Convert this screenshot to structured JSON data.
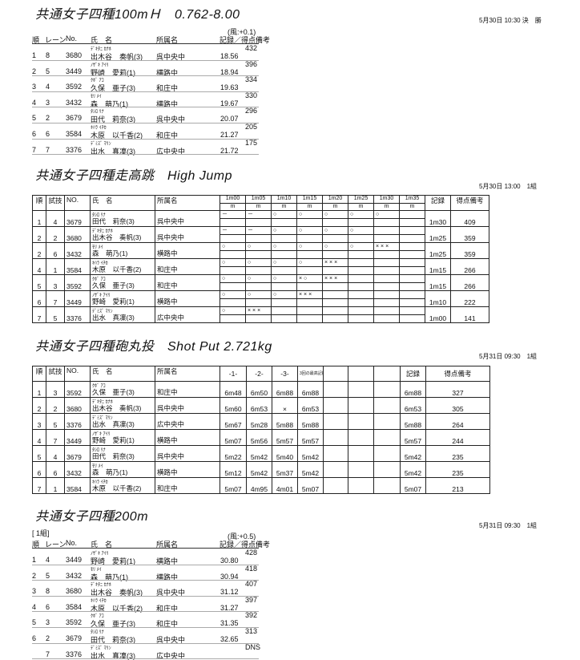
{
  "hurdles": {
    "title": "共通女子四種100mＨ　0.762-8.00",
    "date": "5月30日 10:30 決　勝",
    "wind": "(風:+0.1)",
    "headers": [
      "順",
      "レーン",
      "No.",
      "氏　名",
      "所属名",
      "記録／得点備考"
    ],
    "rows": [
      {
        "rank": "1",
        "lane": "8",
        "no": "3680",
        "kana": "ﾃﾞｷﾀﾆ ｶﾅﾎ",
        "name": "出木谷　奏帆(3)",
        "team": "呉中央中",
        "record": "18.56",
        "points": "432"
      },
      {
        "rank": "2",
        "lane": "5",
        "no": "3449",
        "kana": "ﾉｻﾞｷ ｱｲﾘ",
        "name": "野崎　愛莉(1)",
        "team": "横路中",
        "record": "18.94",
        "points": "396"
      },
      {
        "rank": "3",
        "lane": "4",
        "no": "3592",
        "kana": "ｸﾎﾞ ｱｺ",
        "name": "久保　亜子(3)",
        "team": "和庄中",
        "record": "19.63",
        "points": "334"
      },
      {
        "rank": "4",
        "lane": "3",
        "no": "3432",
        "kana": "ﾓﾘ ﾒｲ",
        "name": "森　萌乃(1)",
        "team": "横路中",
        "record": "19.67",
        "points": "330"
      },
      {
        "rank": "5",
        "lane": "2",
        "no": "3679",
        "kana": "ﾀｼﾛ ﾘﾅ",
        "name": "田代　莉奈(3)",
        "team": "呉中央中",
        "record": "20.07",
        "points": "296"
      },
      {
        "rank": "6",
        "lane": "6",
        "no": "3584",
        "kana": "ｷﾊﾗ ｲﾁｶ",
        "name": "木原　以千香(2)",
        "team": "和庄中",
        "record": "21.27",
        "points": "205"
      },
      {
        "rank": "7",
        "lane": "7",
        "no": "3376",
        "kana": "ﾃﾞﾐｽﾞ ﾏﾘﾝ",
        "name": "出水　真凜(3)",
        "team": "広中央中",
        "record": "21.72",
        "points": "175"
      }
    ]
  },
  "highjump": {
    "title": "共通女子四種走高跳　High Jump",
    "date": "5月30日 13:00　1組",
    "headers": [
      "順",
      "試技",
      "NO.",
      "氏　名",
      "所属名",
      "記録",
      "得点備考"
    ],
    "heights": [
      "1m00",
      "1m05",
      "1m10",
      "1m15",
      "1m20",
      "1m25",
      "1m30",
      "1m35"
    ],
    "unit": "m",
    "rows": [
      {
        "rank": "1",
        "order": "4",
        "no": "3679",
        "kana": "ﾀｼﾛ ﾘﾅ",
        "name": "田代　莉奈(3)",
        "team": "呉中央中",
        "marks": [
          "－",
          "－",
          "○",
          "○",
          "○",
          "○",
          "○",
          ""
        ],
        "record": "1m30",
        "points": "409"
      },
      {
        "rank": "2",
        "order": "2",
        "no": "3680",
        "kana": "ﾃﾞｷﾀﾆ ｶﾅﾎ",
        "name": "出木谷　奏帆(3)",
        "team": "呉中央中",
        "marks": [
          "－",
          "－",
          "○",
          "○",
          "○",
          "○",
          "",
          ""
        ],
        "record": "1m25",
        "points": "359"
      },
      {
        "rank": "2",
        "order": "6",
        "no": "3432",
        "kana": "ﾓﾘ ﾒｲ",
        "name": "森　萌乃(1)",
        "team": "横路中",
        "marks": [
          "○",
          "○",
          "○",
          "○",
          "○",
          "○",
          "× × ×",
          ""
        ],
        "record": "1m25",
        "points": "359"
      },
      {
        "rank": "4",
        "order": "1",
        "no": "3584",
        "kana": "ｷﾊﾗ ｲﾁｶ",
        "name": "木原　以千香(2)",
        "team": "和庄中",
        "marks": [
          "○",
          "○",
          "○",
          "○",
          "× × ×",
          "",
          "",
          ""
        ],
        "record": "1m15",
        "points": "266"
      },
      {
        "rank": "5",
        "order": "3",
        "no": "3592",
        "kana": "ｸﾎﾞ ｱｺ",
        "name": "久保　亜子(3)",
        "team": "和庄中",
        "marks": [
          "○",
          "○",
          "○",
          "× ○",
          "× × ×",
          "",
          "",
          ""
        ],
        "record": "1m15",
        "points": "266"
      },
      {
        "rank": "6",
        "order": "7",
        "no": "3449",
        "kana": "ﾉｻﾞｷ ｱｲﾘ",
        "name": "野崎　愛莉(1)",
        "team": "横路中",
        "marks": [
          "○",
          "○",
          "○",
          "× × ×",
          "",
          "",
          "",
          ""
        ],
        "record": "1m10",
        "points": "222"
      },
      {
        "rank": "7",
        "order": "5",
        "no": "3376",
        "kana": "ﾃﾞﾐｽﾞ ﾏﾘﾝ",
        "name": "出水　真凜(3)",
        "team": "広中央中",
        "marks": [
          "○",
          "× × ×",
          "",
          "",
          "",
          "",
          "",
          ""
        ],
        "record": "1m00",
        "points": "141"
      }
    ]
  },
  "shotput": {
    "title": "共通女子四種砲丸投　Shot Put 2.721kg",
    "date": "5月31日 09:30　1組",
    "headers": [
      "順",
      "試技",
      "NO.",
      "氏　名",
      "所属名",
      "-1-",
      "-2-",
      "-3-",
      "3回の最高記録",
      "記録",
      "得点備考"
    ],
    "rows": [
      {
        "rank": "1",
        "order": "3",
        "no": "3592",
        "kana": "ｸﾎﾞ ｱｺ",
        "name": "久保　亜子(3)",
        "team": "和庄中",
        "attempts": [
          "6m48",
          "6m50",
          "6m88",
          "6m88"
        ],
        "record": "6m88",
        "points": "327"
      },
      {
        "rank": "2",
        "order": "2",
        "no": "3680",
        "kana": "ﾃﾞｷﾀﾆ ｶﾅﾎ",
        "name": "出木谷　奏帆(3)",
        "team": "呉中央中",
        "attempts": [
          "5m60",
          "6m53",
          "×",
          "6m53"
        ],
        "record": "6m53",
        "points": "305"
      },
      {
        "rank": "3",
        "order": "5",
        "no": "3376",
        "kana": "ﾃﾞﾐｽﾞ ﾏﾘﾝ",
        "name": "出水　真凜(3)",
        "team": "広中央中",
        "attempts": [
          "5m67",
          "5m28",
          "5m88",
          "5m88"
        ],
        "record": "5m88",
        "points": "264"
      },
      {
        "rank": "4",
        "order": "7",
        "no": "3449",
        "kana": "ﾉｻﾞｷ ｱｲﾘ",
        "name": "野崎　愛莉(1)",
        "team": "横路中",
        "attempts": [
          "5m07",
          "5m56",
          "5m57",
          "5m57"
        ],
        "record": "5m57",
        "points": "244"
      },
      {
        "rank": "5",
        "order": "4",
        "no": "3679",
        "kana": "ﾀｼﾛ ﾘﾅ",
        "name": "田代　莉奈(3)",
        "team": "呉中央中",
        "attempts": [
          "5m22",
          "5m42",
          "5m40",
          "5m42"
        ],
        "record": "5m42",
        "points": "235"
      },
      {
        "rank": "6",
        "order": "6",
        "no": "3432",
        "kana": "ﾓﾘ ﾒｲ",
        "name": "森　萌乃(1)",
        "team": "横路中",
        "attempts": [
          "5m12",
          "5m42",
          "5m37",
          "5m42"
        ],
        "record": "5m42",
        "points": "235"
      },
      {
        "rank": "7",
        "order": "1",
        "no": "3584",
        "kana": "ｷﾊﾗ ｲﾁｶ",
        "name": "木原　以千香(2)",
        "team": "和庄中",
        "attempts": [
          "5m07",
          "4m95",
          "4m01",
          "5m07"
        ],
        "record": "5m07",
        "points": "213"
      }
    ]
  },
  "sprint200": {
    "title": "共通女子四種200m",
    "date": "5月31日 09:30　1組",
    "heat": "[ 1組]",
    "wind": "(風:+0.5)",
    "headers": [
      "順",
      "レーン",
      "No.",
      "氏　名",
      "所属名",
      "記録／得点備考"
    ],
    "rows": [
      {
        "rank": "1",
        "lane": "4",
        "no": "3449",
        "kana": "ﾉｻﾞｷ ｱｲﾘ",
        "name": "野崎　愛莉(1)",
        "team": "横路中",
        "record": "30.80",
        "points": "428"
      },
      {
        "rank": "2",
        "lane": "5",
        "no": "3432",
        "kana": "ﾓﾘ ﾒｲ",
        "name": "森　萌乃(1)",
        "team": "横路中",
        "record": "30.94",
        "points": "418"
      },
      {
        "rank": "3",
        "lane": "8",
        "no": "3680",
        "kana": "ﾃﾞｷﾀﾆ ｶﾅﾎ",
        "name": "出木谷　奏帆(3)",
        "team": "呉中央中",
        "record": "31.12",
        "points": "407"
      },
      {
        "rank": "4",
        "lane": "6",
        "no": "3584",
        "kana": "ｷﾊﾗ ｲﾁｶ",
        "name": "木原　以千香(2)",
        "team": "和庄中",
        "record": "31.27",
        "points": "397"
      },
      {
        "rank": "5",
        "lane": "3",
        "no": "3592",
        "kana": "ｸﾎﾞ ｱｺ",
        "name": "久保　亜子(3)",
        "team": "和庄中",
        "record": "31.35",
        "points": "392"
      },
      {
        "rank": "6",
        "lane": "2",
        "no": "3679",
        "kana": "ﾀｼﾛ ﾘﾅ",
        "name": "田代　莉奈(3)",
        "team": "呉中央中",
        "record": "32.65",
        "points": "313"
      },
      {
        "rank": "",
        "lane": "7",
        "no": "3376",
        "kana": "ﾃﾞﾐｽﾞ ﾏﾘﾝ",
        "name": "出水　真凜(3)",
        "team": "広中央中",
        "record": "",
        "points": "DNS"
      }
    ]
  }
}
